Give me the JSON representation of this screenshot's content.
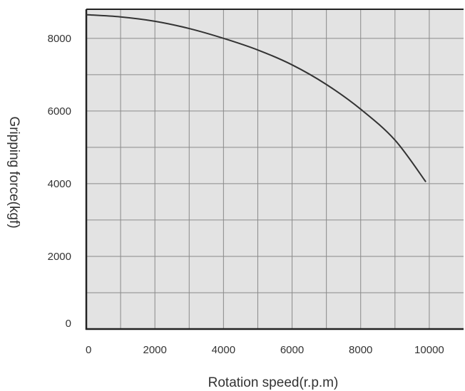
{
  "chart_data": {
    "type": "line",
    "xlabel": "Rotation speed(r.p.m)",
    "ylabel": "Gripping force(kgf)",
    "xlim": [
      0,
      11000
    ],
    "ylim": [
      0,
      8800
    ],
    "x_ticks": [
      0,
      2000,
      4000,
      6000,
      8000,
      10000
    ],
    "y_ticks": [
      0,
      2000,
      4000,
      6000,
      8000
    ],
    "x_tick_labels": [
      "0",
      "2000",
      "4000",
      "6000",
      "8000",
      "10000"
    ],
    "y_tick_labels": [
      "0",
      "2000",
      "4000",
      "6000",
      "8000"
    ],
    "grid": true,
    "grid_step_x": 1000,
    "grid_step_y": 1000,
    "background_color": "#e3e3e3",
    "line_color": "#333333",
    "series": [
      {
        "x": [
          0,
          1000,
          2000,
          3000,
          4000,
          5000,
          6000,
          7000,
          8000,
          9000,
          9900
        ],
        "values": [
          8650,
          8590,
          8470,
          8270,
          8000,
          7680,
          7270,
          6730,
          6050,
          5200,
          4050
        ]
      }
    ]
  }
}
